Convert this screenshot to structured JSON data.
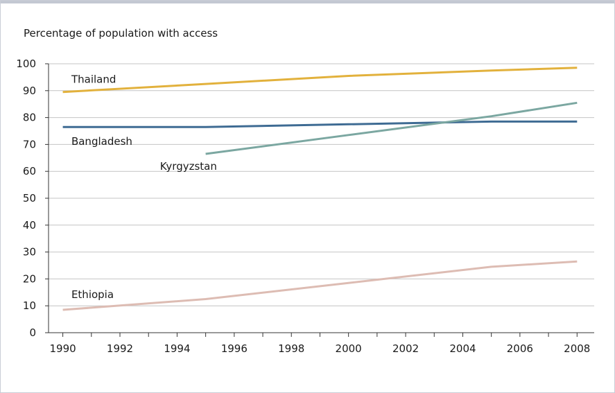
{
  "chart_data": {
    "type": "line",
    "title": "",
    "ylabel": "Percentage of population with access",
    "xlabel": "",
    "xlim": [
      1989.5,
      2008.6
    ],
    "ylim": [
      0,
      100
    ],
    "xticks": [
      1990,
      1992,
      1994,
      1996,
      1998,
      2000,
      2002,
      2004,
      2006,
      2008
    ],
    "yticks": [
      0,
      10,
      20,
      30,
      40,
      50,
      60,
      70,
      80,
      90,
      100
    ],
    "grid": true,
    "legend": "none",
    "series": [
      {
        "name": "Thailand",
        "color": "#e2b13c",
        "x": [
          1990,
          1995,
          2000,
          2005,
          2008
        ],
        "y": [
          89.5,
          92.5,
          95.5,
          97.5,
          98.5
        ]
      },
      {
        "name": "Bangladesh",
        "color": "#3e6b93",
        "x": [
          1990,
          1995,
          2000,
          2005,
          2008
        ],
        "y": [
          76.5,
          76.5,
          77.5,
          78.5,
          78.5
        ]
      },
      {
        "name": "Kyrgyzstan",
        "color": "#7ba7a1",
        "x": [
          1995,
          2000,
          2005,
          2008
        ],
        "y": [
          66.5,
          73.5,
          80.5,
          85.5
        ]
      },
      {
        "name": "Ethiopia",
        "color": "#ddbcb3",
        "x": [
          1990,
          1995,
          2000,
          2005,
          2008
        ],
        "y": [
          8.5,
          12.5,
          18.5,
          24.5,
          26.5
        ]
      }
    ]
  }
}
